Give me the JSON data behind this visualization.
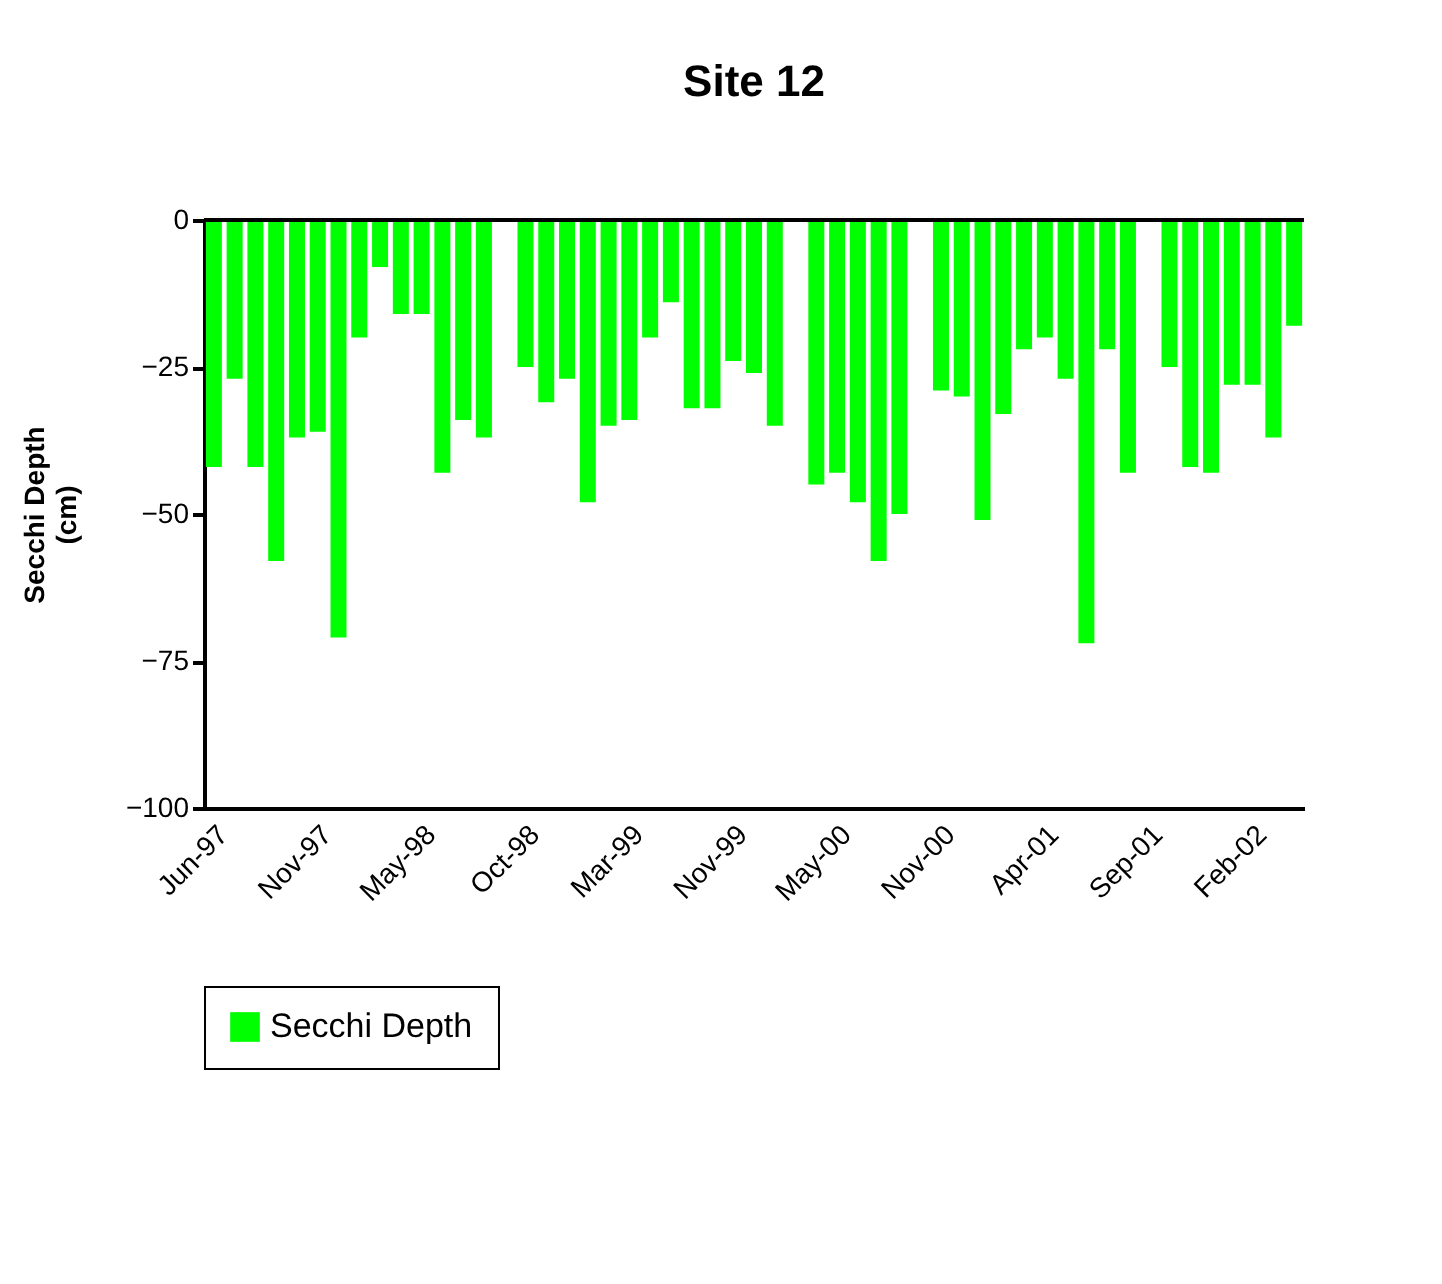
{
  "chart_data": {
    "type": "bar",
    "title": "Site 12",
    "ylabel": "Secchi Depth\n(cm)",
    "categories": [
      "Jun-97",
      null,
      null,
      null,
      null,
      "Nov-97",
      null,
      null,
      null,
      null,
      "May-98",
      null,
      null,
      null,
      null,
      "Oct-98",
      null,
      null,
      null,
      null,
      "Mar-99",
      null,
      null,
      null,
      null,
      "Nov-99",
      null,
      null,
      null,
      null,
      "May-00",
      null,
      null,
      null,
      null,
      "Nov-00",
      null,
      null,
      null,
      null,
      "Apr-01",
      null,
      null,
      null,
      null,
      "Sep-01",
      null,
      null,
      null,
      null,
      "Feb-02",
      null,
      null
    ],
    "series": [
      {
        "name": "Secchi Depth",
        "color": "#00ff00",
        "values": [
          -42,
          -27,
          -42,
          -58,
          -37,
          -36,
          -71,
          -20,
          -8,
          -16,
          -16,
          -43,
          -34,
          -37,
          null,
          -25,
          -31,
          -27,
          -48,
          -35,
          -34,
          -20,
          -14,
          -32,
          -32,
          -24,
          -26,
          -35,
          null,
          -45,
          -43,
          -48,
          -58,
          -50,
          null,
          -29,
          -30,
          -51,
          -33,
          -22,
          -20,
          -27,
          -72,
          -22,
          -43,
          null,
          -25,
          -42,
          -43,
          -28,
          -28,
          -37,
          -18
        ]
      }
    ],
    "ylim": [
      -100,
      0
    ],
    "yticks": [
      0,
      -25,
      -50,
      -75,
      -100
    ],
    "grid": false,
    "legend": "bottom"
  }
}
